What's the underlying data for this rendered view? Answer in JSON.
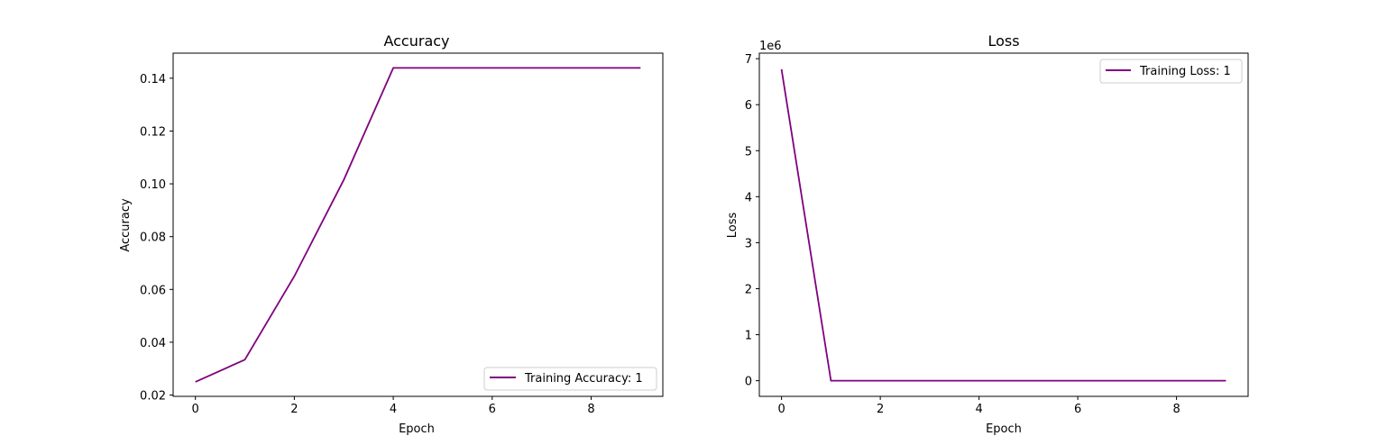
{
  "chart_data": [
    {
      "type": "line",
      "title": "Accuracy",
      "xlabel": "Epoch",
      "ylabel": "Accuracy",
      "xlim": [
        -0.45,
        9.45
      ],
      "ylim": [
        0.0195,
        0.1495
      ],
      "xticks": [
        0,
        2,
        4,
        6,
        8
      ],
      "xtick_labels": [
        "0",
        "2",
        "4",
        "6",
        "8"
      ],
      "yticks": [
        0.02,
        0.04,
        0.06,
        0.08,
        0.1,
        0.12,
        0.14
      ],
      "ytick_labels": [
        "0.02",
        "0.04",
        "0.06",
        "0.08",
        "0.10",
        "0.12",
        "0.14"
      ],
      "grid": false,
      "legend_position": "lower-right",
      "series": [
        {
          "name": "Training Accuracy: 1",
          "color": "#800080",
          "x": [
            0,
            1,
            2,
            3,
            4,
            5,
            6,
            7,
            8,
            9
          ],
          "values": [
            0.025,
            0.0334,
            0.065,
            0.1015,
            0.1439,
            0.1439,
            0.1439,
            0.1439,
            0.1439,
            0.1439
          ]
        }
      ]
    },
    {
      "type": "line",
      "title": "Loss",
      "xlabel": "Epoch",
      "ylabel": "Loss",
      "offset_label": "1e6",
      "xlim": [
        -0.45,
        9.45
      ],
      "ylim": [
        -0.34,
        7.12
      ],
      "xticks": [
        0,
        2,
        4,
        6,
        8
      ],
      "xtick_labels": [
        "0",
        "2",
        "4",
        "6",
        "8"
      ],
      "yticks": [
        0,
        1,
        2,
        3,
        4,
        5,
        6,
        7
      ],
      "ytick_labels": [
        "0",
        "1",
        "2",
        "3",
        "4",
        "5",
        "6",
        "7"
      ],
      "grid": false,
      "legend_position": "upper-right",
      "series": [
        {
          "name": "Training Loss: 1",
          "color": "#800080",
          "x": [
            0,
            1,
            2,
            3,
            4,
            5,
            6,
            7,
            8,
            9
          ],
          "values": [
            6.77,
            0.0,
            0.0,
            0.0,
            0.0,
            0.0,
            0.0,
            0.0,
            0.0,
            0.0
          ]
        }
      ]
    }
  ]
}
